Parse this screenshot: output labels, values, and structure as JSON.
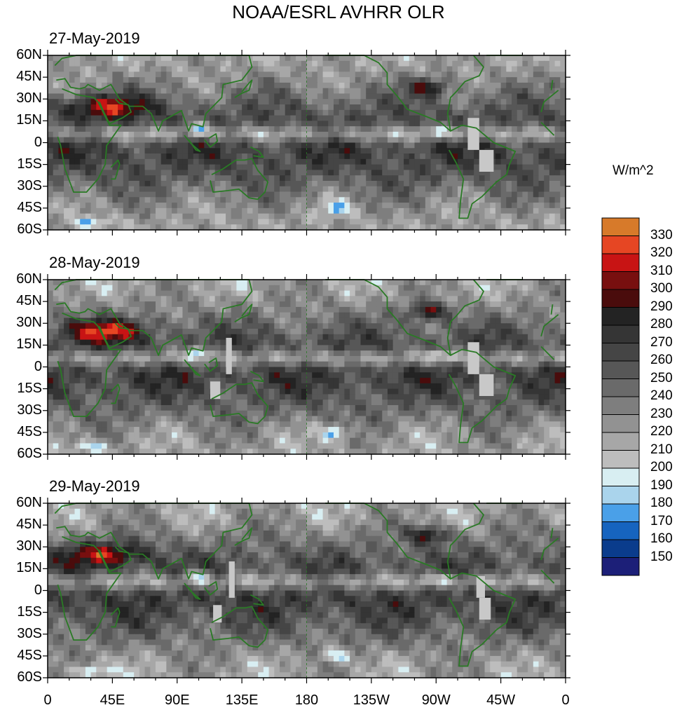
{
  "title": "NOAA/ESRL AVHRR OLR",
  "units": "W/m^2",
  "panels": [
    {
      "date": "27-May-2019"
    },
    {
      "date": "28-May-2019"
    },
    {
      "date": "29-May-2019"
    }
  ],
  "lat_labels": [
    "60N",
    "45N",
    "30N",
    "15N",
    "0",
    "15S",
    "30S",
    "45S",
    "60S"
  ],
  "lon_labels": [
    "0",
    "45E",
    "90E",
    "135E",
    "180",
    "135W",
    "90W",
    "45W",
    "0"
  ],
  "colorbar": {
    "levels": [
      150,
      160,
      170,
      180,
      190,
      200,
      210,
      220,
      230,
      240,
      250,
      260,
      270,
      280,
      290,
      300,
      310,
      320,
      330
    ],
    "colors": [
      "#1c1f78",
      "#0a3c8c",
      "#1664bf",
      "#4aa0e8",
      "#aad4ec",
      "#d8eef2",
      "#bdbdbd",
      "#a7a7a7",
      "#929292",
      "#7e7e7e",
      "#6a6a6a",
      "#575757",
      "#454545",
      "#353535",
      "#232323",
      "#4a0c0c",
      "#780f0f",
      "#c81414",
      "#e64623",
      "#d77a2a"
    ]
  },
  "colors": {
    "coastline": "#2a7a25",
    "missing": "#c8c8c8"
  }
}
